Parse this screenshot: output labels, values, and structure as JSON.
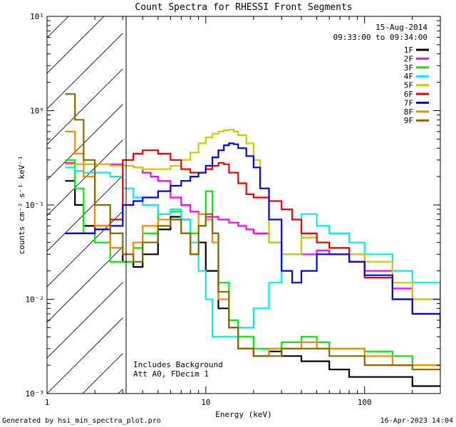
{
  "chart_data": {
    "type": "line",
    "title": "Count Spectra for RHESSI Front Segments",
    "xlabel": "Energy (keV)",
    "ylabel": "counts cm⁻² s⁻¹ keV⁻¹",
    "xscale": "log",
    "yscale": "log",
    "xlim": [
      1,
      300
    ],
    "ylim": [
      0.001,
      10
    ],
    "x_tick_labels": [
      {
        "value": 1,
        "label": "1"
      },
      {
        "value": 10,
        "label": "10"
      },
      {
        "value": 100,
        "label": "100"
      }
    ],
    "y_tick_labels": [
      {
        "value": 10,
        "label": "10¹"
      },
      {
        "value": 1,
        "label": "10⁰"
      },
      {
        "value": 0.1,
        "label": "10⁻¹"
      },
      {
        "value": 0.01,
        "label": "10⁻²"
      },
      {
        "value": 0.001,
        "label": "10⁻³"
      }
    ],
    "shaded_region": {
      "x_from": 1,
      "x_to": 3,
      "pattern": "diagonal hatch"
    },
    "date": "15-Aug-2014",
    "time_range": "09:33:00 to 09:34:00",
    "notes": [
      "Includes Background",
      "Att A0, FDecim 1"
    ],
    "footer_left": "Generated by hsi_min_spectra_plot.pro",
    "footer_right": "16-Apr-2023 14:04",
    "series": [
      {
        "name": "1F",
        "color": "#000000",
        "x": [
          1.3,
          1.5,
          1.7,
          2,
          2.5,
          3,
          3.5,
          4,
          5,
          6,
          7,
          8,
          9,
          10,
          12,
          14,
          16,
          20,
          25,
          30,
          40,
          50,
          60,
          80,
          100,
          150,
          200,
          300
        ],
        "y": [
          0.18,
          0.1,
          0.06,
          0.055,
          0.035,
          0.025,
          0.022,
          0.03,
          0.055,
          0.075,
          0.07,
          0.03,
          0.04,
          0.02,
          0.008,
          0.005,
          0.003,
          0.0025,
          0.0028,
          0.0025,
          0.0022,
          0.0022,
          0.0018,
          0.0015,
          0.0015,
          0.0015,
          0.0012,
          0.0012
        ]
      },
      {
        "name": "2F",
        "color": "#ff00ff",
        "x": [
          1.3,
          1.5,
          2,
          2.5,
          3,
          3.5,
          4,
          4.5,
          5,
          6,
          7,
          8,
          9,
          10,
          12,
          14,
          16,
          18,
          20,
          25,
          30,
          40,
          50,
          60,
          80,
          100,
          150,
          200,
          300
        ],
        "y": [
          0.28,
          0.27,
          0.27,
          0.27,
          0.26,
          0.25,
          0.22,
          0.2,
          0.18,
          0.12,
          0.1,
          0.085,
          0.08,
          0.075,
          0.07,
          0.065,
          0.06,
          0.055,
          0.05,
          0.04,
          0.03,
          0.03,
          0.033,
          0.03,
          0.03,
          0.02,
          0.013,
          0.01,
          0.007
        ]
      },
      {
        "name": "3F",
        "color": "#00ee00",
        "x": [
          1.3,
          1.5,
          1.7,
          2,
          2.5,
          3,
          3.5,
          4,
          5,
          6,
          7,
          8,
          9,
          10,
          11,
          12,
          14,
          16,
          20,
          25,
          30,
          40,
          50,
          60,
          80,
          100,
          150,
          200,
          300
        ],
        "y": [
          0.3,
          0.15,
          0.05,
          0.04,
          0.025,
          0.025,
          0.035,
          0.05,
          0.08,
          0.085,
          0.07,
          0.05,
          0.06,
          0.14,
          0.05,
          0.015,
          0.006,
          0.004,
          0.003,
          0.003,
          0.0035,
          0.004,
          0.0035,
          0.003,
          0.003,
          0.0028,
          0.0025,
          0.002,
          0.002
        ]
      },
      {
        "name": "4F",
        "color": "#00eeee",
        "x": [
          1.3,
          1.5,
          1.7,
          2,
          2.5,
          3,
          3.5,
          4,
          5,
          6,
          7,
          8,
          9,
          10,
          11,
          12,
          14,
          16,
          20,
          25,
          30,
          40,
          50,
          60,
          80,
          100,
          150,
          200,
          300
        ],
        "y": [
          0.25,
          0.23,
          0.22,
          0.22,
          0.2,
          0.15,
          0.12,
          0.1,
          0.08,
          0.09,
          0.07,
          0.04,
          0.02,
          0.01,
          0.004,
          0.004,
          0.004,
          0.005,
          0.008,
          0.015,
          0.03,
          0.08,
          0.06,
          0.05,
          0.04,
          0.03,
          0.02,
          0.015,
          0.01
        ]
      },
      {
        "name": "5F",
        "color": "#cccc00",
        "x": [
          1.3,
          1.5,
          2,
          2.5,
          3,
          3.5,
          4,
          5,
          6,
          7,
          8,
          9,
          10,
          11,
          12,
          13,
          14,
          15,
          16,
          18,
          20,
          22,
          25,
          30,
          40,
          50,
          60,
          80,
          100,
          150,
          200,
          300
        ],
        "y": [
          0.27,
          0.27,
          0.27,
          0.26,
          0.26,
          0.25,
          0.24,
          0.24,
          0.26,
          0.3,
          0.36,
          0.45,
          0.52,
          0.57,
          0.6,
          0.62,
          0.63,
          0.6,
          0.55,
          0.45,
          0.3,
          0.15,
          0.04,
          0.03,
          0.045,
          0.04,
          0.035,
          0.03,
          0.025,
          0.015,
          0.01,
          0.006
        ]
      },
      {
        "name": "6F",
        "color": "#ee0000",
        "x": [
          1.3,
          1.5,
          2,
          2.5,
          3,
          3.5,
          4,
          4.5,
          5,
          6,
          7,
          8,
          9,
          10,
          11,
          12,
          13,
          14,
          16,
          18,
          20,
          25,
          30,
          35,
          40,
          50,
          60,
          80,
          100,
          150,
          200,
          300
        ],
        "y": [
          0.05,
          0.05,
          0.06,
          0.07,
          0.3,
          0.35,
          0.38,
          0.38,
          0.35,
          0.3,
          0.24,
          0.22,
          0.22,
          0.24,
          0.26,
          0.28,
          0.27,
          0.22,
          0.17,
          0.13,
          0.12,
          0.11,
          0.09,
          0.07,
          0.05,
          0.04,
          0.035,
          0.025,
          0.017,
          0.01,
          0.007,
          0.005
        ]
      },
      {
        "name": "7F",
        "color": "#0000ee",
        "x": [
          1.3,
          1.5,
          2,
          2.5,
          3,
          3.5,
          4,
          5,
          6,
          7,
          8,
          9,
          10,
          11,
          12,
          13,
          14,
          15,
          16,
          18,
          20,
          22,
          25,
          30,
          35,
          40,
          50,
          60,
          80,
          100,
          150,
          200,
          300
        ],
        "y": [
          0.05,
          0.05,
          0.055,
          0.06,
          0.1,
          0.11,
          0.12,
          0.14,
          0.16,
          0.18,
          0.2,
          0.22,
          0.26,
          0.32,
          0.38,
          0.43,
          0.45,
          0.44,
          0.4,
          0.33,
          0.25,
          0.15,
          0.07,
          0.02,
          0.015,
          0.02,
          0.03,
          0.03,
          0.025,
          0.018,
          0.01,
          0.007,
          0.005
        ]
      },
      {
        "name": "8F",
        "color": "#ff8800",
        "x": [
          1.3,
          1.5,
          1.7,
          2,
          2.5,
          3,
          3.5,
          4,
          5,
          6,
          7,
          8,
          9,
          10,
          11,
          12,
          14,
          16,
          20,
          25,
          30,
          40,
          50,
          60,
          80,
          100,
          150,
          200,
          300
        ],
        "y": [
          0.6,
          0.35,
          0.2,
          0.06,
          0.035,
          0.03,
          0.04,
          0.06,
          0.07,
          0.07,
          0.05,
          0.03,
          0.08,
          0.07,
          0.04,
          0.01,
          0.005,
          0.003,
          0.0025,
          0.003,
          0.003,
          0.0035,
          0.003,
          0.003,
          0.003,
          0.0025,
          0.002,
          0.002,
          0.002
        ]
      },
      {
        "name": "9F",
        "color": "#886600",
        "x": [
          1.3,
          1.5,
          1.7,
          2,
          2.5,
          3,
          3.5,
          4,
          5,
          6,
          7,
          8,
          9,
          10,
          11,
          12,
          14,
          16,
          20,
          25,
          30,
          40,
          50,
          60,
          80,
          100,
          150,
          200,
          300
        ],
        "y": [
          1.5,
          0.8,
          0.3,
          0.1,
          0.05,
          0.03,
          0.025,
          0.04,
          0.06,
          0.07,
          0.05,
          0.03,
          0.06,
          0.08,
          0.05,
          0.012,
          0.005,
          0.003,
          0.0025,
          0.0025,
          0.003,
          0.003,
          0.003,
          0.0025,
          0.0025,
          0.002,
          0.002,
          0.0018,
          0.0018
        ]
      }
    ]
  }
}
